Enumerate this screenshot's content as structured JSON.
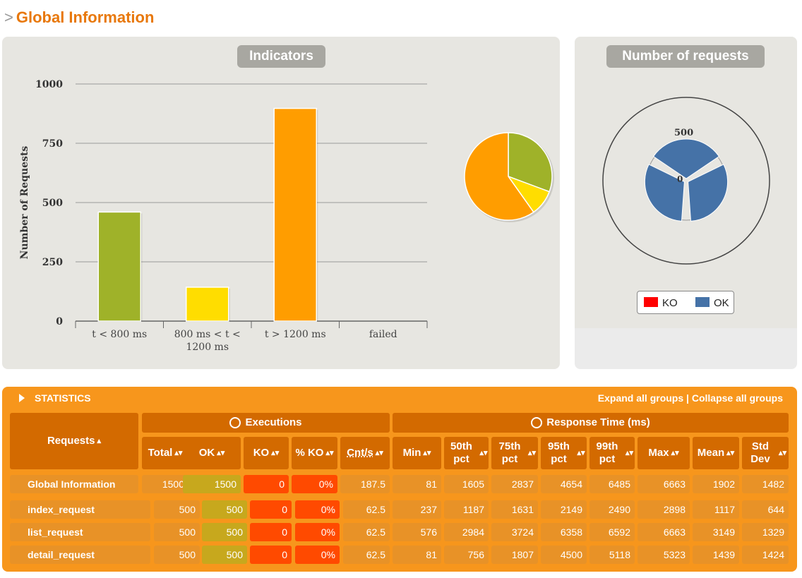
{
  "page": {
    "prefix": ">",
    "title": "Global Information"
  },
  "indicators": {
    "title": "Indicators"
  },
  "requests_panel": {
    "title": "Number of requests",
    "tick_500": "500",
    "tick_0": "0"
  },
  "legend": {
    "ko": "KO",
    "ok": "OK"
  },
  "colors": {
    "green": "#9fb229",
    "yellow": "#ffdd00",
    "orange": "#ff9d00",
    "blue": "#4572a7",
    "red": "#ff0000"
  },
  "chart_data": [
    {
      "type": "bar",
      "ylabel": "Number of Requests",
      "ylim": [
        0,
        1000
      ],
      "yticks": [
        0,
        250,
        500,
        750,
        1000
      ],
      "categories": [
        "t < 800 ms",
        "800 ms < t < 1200 ms",
        "t > 1200 ms",
        "failed"
      ],
      "category_lines": [
        [
          "t < 800 ms"
        ],
        [
          "800 ms < t <",
          "1200 ms"
        ],
        [
          "t > 1200 ms"
        ],
        [
          "failed"
        ]
      ],
      "values": [
        460,
        143,
        897,
        0
      ],
      "grid": true
    },
    {
      "type": "pie",
      "categories": [
        "t < 800 ms",
        "800 ms < t < 1200 ms",
        "t > 1200 ms"
      ],
      "values": [
        460,
        143,
        897
      ]
    },
    {
      "type": "pie",
      "title": "Number of requests",
      "categories": [
        "index_request",
        "list_request",
        "detail_request"
      ],
      "series": [
        {
          "name": "OK",
          "values": [
            500,
            500,
            500
          ]
        },
        {
          "name": "KO",
          "values": [
            0,
            0,
            0
          ]
        }
      ],
      "ylim": [
        0,
        500
      ]
    }
  ],
  "stats": {
    "label": "STATISTICS",
    "expand": "Expand all groups",
    "separator": "|",
    "collapse": "Collapse all groups",
    "requests_header": "Requests",
    "executions_header": "Executions",
    "response_header": "Response Time (ms)",
    "columns": [
      "Total",
      "OK",
      "KO",
      "% KO",
      "Cnt/s",
      "Min",
      "50th pct",
      "75th pct",
      "95th pct",
      "99th pct",
      "Max",
      "Mean",
      "Std Dev"
    ],
    "rows": [
      {
        "name": "Global Information",
        "values": [
          "1500",
          "1500",
          "0",
          "0%",
          "187.5",
          "81",
          "1605",
          "2837",
          "4654",
          "6485",
          "6663",
          "1902",
          "1482"
        ]
      },
      {
        "name": "index_request",
        "values": [
          "500",
          "500",
          "0",
          "0%",
          "62.5",
          "237",
          "1187",
          "1631",
          "2149",
          "2490",
          "2898",
          "1117",
          "644"
        ]
      },
      {
        "name": "list_request",
        "values": [
          "500",
          "500",
          "0",
          "0%",
          "62.5",
          "576",
          "2984",
          "3724",
          "6358",
          "6592",
          "6663",
          "3149",
          "1329"
        ]
      },
      {
        "name": "detail_request",
        "values": [
          "500",
          "500",
          "0",
          "0%",
          "62.5",
          "81",
          "756",
          "1807",
          "4500",
          "5118",
          "5323",
          "1439",
          "1424"
        ]
      }
    ]
  }
}
